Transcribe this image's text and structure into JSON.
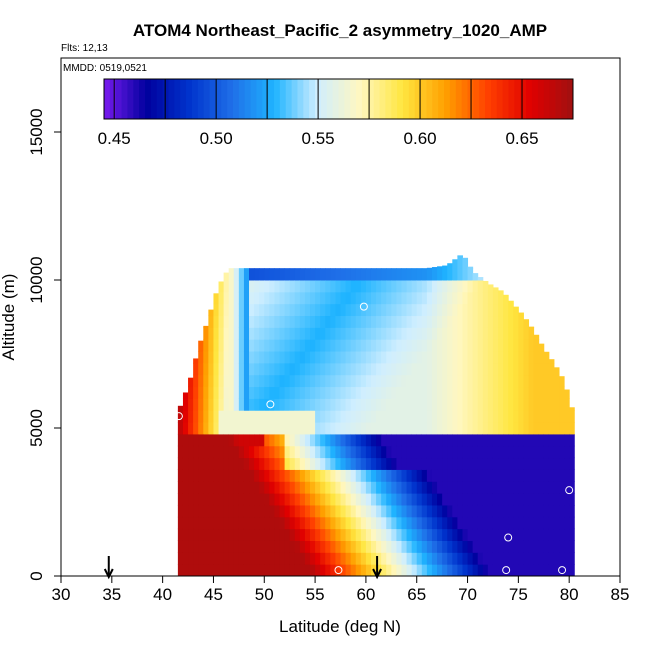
{
  "chart_data": {
    "type": "heatmap",
    "title": "ATOM4 Northeast_Pacific_2 asymmetry_1020_AMP",
    "annotations": {
      "flights": "Flts: 12,13",
      "dates": "MMDD: 0519,0521"
    },
    "xlabel": "Latitude (deg N)",
    "ylabel": "Altitude (m)",
    "xlim": [
      30,
      85
    ],
    "ylim": [
      0,
      17500
    ],
    "xticks": [
      30,
      35,
      40,
      45,
      50,
      55,
      60,
      65,
      70,
      75,
      80,
      85
    ],
    "yticks": [
      0,
      5000,
      10000,
      15000
    ],
    "colorbar": {
      "range": [
        0.445,
        0.675
      ],
      "ticks": [
        0.45,
        0.5,
        0.55,
        0.6,
        0.65
      ],
      "tick_labels": [
        "0.45",
        "0.50",
        "0.55",
        "0.60",
        "0.65"
      ],
      "colors": [
        "#7a1cf0",
        "#00009e",
        "#0033cc",
        "#1f6fe8",
        "#1fb4ff",
        "#cfeeff",
        "#fff7c0",
        "#ffe640",
        "#ffa000",
        "#ff4000",
        "#e00000",
        "#a01010"
      ]
    },
    "column_tops": [
      [
        41.5,
        5500
      ],
      [
        42,
        6000
      ],
      [
        42.5,
        6400
      ],
      [
        43,
        7000
      ],
      [
        43.5,
        7700
      ],
      [
        44,
        8200
      ],
      [
        44.5,
        8700
      ],
      [
        45,
        9300
      ],
      [
        45.5,
        9800
      ],
      [
        46.5,
        10400
      ],
      [
        57,
        10400
      ],
      [
        66,
        10400
      ],
      [
        68,
        10500
      ],
      [
        69.5,
        10900
      ],
      [
        70.5,
        10300
      ],
      [
        72,
        9900
      ],
      [
        73.5,
        9600
      ],
      [
        74.5,
        9200
      ],
      [
        75.5,
        8800
      ],
      [
        76.5,
        8300
      ],
      [
        77.5,
        7700
      ],
      [
        78.5,
        7200
      ],
      [
        79.5,
        6600
      ],
      [
        80.5,
        5400
      ]
    ],
    "profile_points": [
      {
        "lat": 41.6,
        "alt": 5400
      },
      {
        "lat": 50.6,
        "alt": 5800
      },
      {
        "lat": 59.8,
        "alt": 9100
      },
      {
        "lat": 80.0,
        "alt": 2900
      },
      {
        "lat": 74.0,
        "alt": 1300
      },
      {
        "lat": 57.3,
        "alt": 200
      },
      {
        "lat": 73.8,
        "alt": 200
      },
      {
        "lat": 79.3,
        "alt": 200
      }
    ],
    "arrows": [
      34.7,
      61.1
    ]
  }
}
